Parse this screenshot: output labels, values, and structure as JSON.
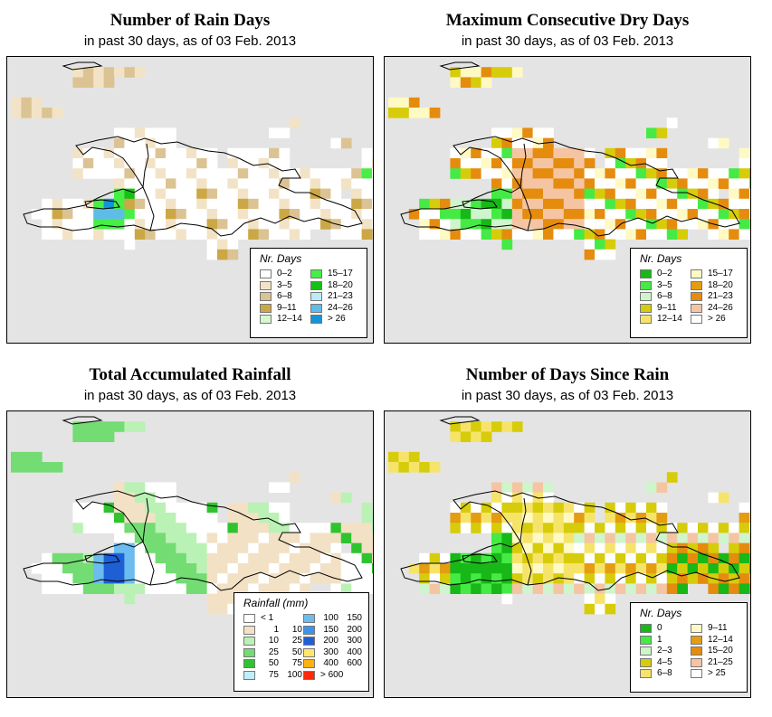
{
  "panels": [
    {
      "title": "Number of Rain Days",
      "subtitle": "in past 30 days, as of  03 Feb. 2013",
      "legend": {
        "title": "Nr. Days",
        "col1": [
          {
            "label": "0–2",
            "color": "#ffffff"
          },
          {
            "label": "3–5",
            "color": "#f3e3c6"
          },
          {
            "label": "6–8",
            "color": "#dcc394"
          },
          {
            "label": "9–11",
            "color": "#cba845"
          },
          {
            "label": "12–14",
            "color": "#d8f7d0"
          }
        ],
        "col2": [
          {
            "label": "15–17",
            "color": "#46ee46"
          },
          {
            "label": "18–20",
            "color": "#17c017"
          },
          {
            "label": "21–23",
            "color": "#b8ecf7"
          },
          {
            "label": "24–26",
            "color": "#5fbce9"
          },
          {
            "label": "> 26",
            "color": "#1493d8"
          }
        ]
      }
    },
    {
      "title": "Maximum Consecutive Dry Days",
      "subtitle": "in past 30 days, as of  03 Feb. 2013",
      "legend": {
        "title": "Nr. Days",
        "col1": [
          {
            "label": "0–2",
            "color": "#17b817"
          },
          {
            "label": "3–5",
            "color": "#45ea45"
          },
          {
            "label": "6–8",
            "color": "#cff5cc"
          },
          {
            "label": "9–11",
            "color": "#d7cc0a"
          },
          {
            "label": "12–14",
            "color": "#f6e46a"
          }
        ],
        "col2": [
          {
            "label": "15–17",
            "color": "#fff9c4"
          },
          {
            "label": "18–20",
            "color": "#e49d10"
          },
          {
            "label": "21–23",
            "color": "#e58c0f"
          },
          {
            "label": "24–26",
            "color": "#f5c5a3"
          },
          {
            "label": "> 26",
            "color": "#ffffff"
          }
        ]
      }
    },
    {
      "title": "Total Accumulated Rainfall",
      "subtitle": "in past 30 days, as of  03 Feb. 2013",
      "legend": {
        "title": "Rainfall (mm)",
        "col1": [
          {
            "label": "< 1",
            "lo": "",
            "hi": "< 1",
            "color": "#ffffff"
          },
          {
            "label": "1  10",
            "lo": "1",
            "hi": "10",
            "color": "#f2e1c4"
          },
          {
            "label": "10  25",
            "lo": "10",
            "hi": "25",
            "color": "#b9f2b4"
          },
          {
            "label": "25  50",
            "lo": "25",
            "hi": "50",
            "color": "#73dc73"
          },
          {
            "label": "50  75",
            "lo": "50",
            "hi": "75",
            "color": "#2fc42f"
          },
          {
            "label": "75  100",
            "lo": "75",
            "hi": "100",
            "color": "#bdeefa"
          }
        ],
        "col2": [
          {
            "label": "100  150",
            "lo": "100",
            "hi": "150",
            "color": "#6cbcf0"
          },
          {
            "label": "150  200",
            "lo": "150",
            "hi": "200",
            "color": "#3d93e8"
          },
          {
            "label": "200  300",
            "lo": "200",
            "hi": "300",
            "color": "#1f5fd6"
          },
          {
            "label": "300  400",
            "lo": "300",
            "hi": "400",
            "color": "#ffe76a"
          },
          {
            "label": "400  600",
            "lo": "400",
            "hi": "600",
            "color": "#ffb20f"
          },
          {
            "label": "> 600",
            "lo": "",
            "hi": "> 600",
            "color": "#ff2a0a"
          }
        ]
      }
    },
    {
      "title": "Number of Days Since Rain",
      "subtitle": "in past 30 days, as of  03 Feb. 2013",
      "legend": {
        "title": "Nr. Days",
        "col1": [
          {
            "label": "0",
            "color": "#17b817"
          },
          {
            "label": "1",
            "color": "#45ea45"
          },
          {
            "label": "2–3",
            "color": "#cff5cc"
          },
          {
            "label": "4–5",
            "color": "#d7cc0a"
          },
          {
            "label": "6–8",
            "color": "#f6e46a"
          }
        ],
        "col2": [
          {
            "label": "9–11",
            "color": "#fff9c4"
          },
          {
            "label": "12–14",
            "color": "#e49d10"
          },
          {
            "label": "15–20",
            "color": "#e58c0f"
          },
          {
            "label": "21–25",
            "color": "#f5c5a3"
          },
          {
            "label": "> 25",
            "color": "#ffffff"
          }
        ]
      }
    }
  ]
}
